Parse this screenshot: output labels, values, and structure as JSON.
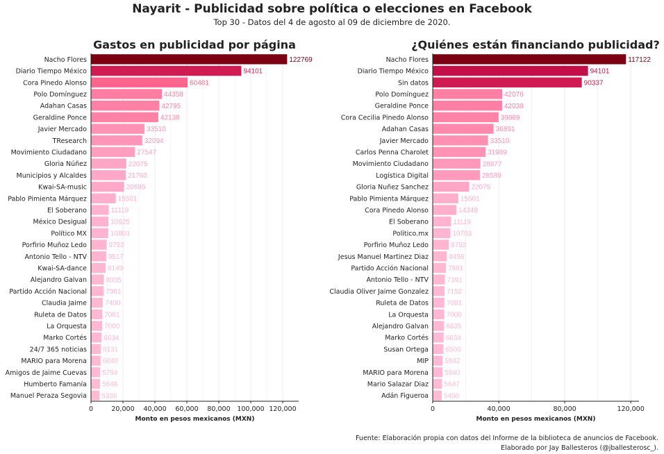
{
  "header": {
    "title": "Nayarit - Publicidad sobre política o elecciones en Facebook",
    "subtitle": "Top 30 - Datos del 4 de agosto al 09 de diciembre de 2020."
  },
  "footer": {
    "source": "Fuente: Elaboración propia con datos del Informe de la biblioteca de anuncios de Facebook.",
    "credit": "Elaborado por Jay Ballesteros (@jballesterosc_)."
  },
  "chart_data": [
    {
      "type": "bar",
      "orientation": "horizontal",
      "title": "Gastos en publicidad por página",
      "xlabel": "Monto en pesos mexicanos (MXN)",
      "ylabel": "",
      "xlim": [
        0,
        130000
      ],
      "xticks": [
        0,
        20000,
        40000,
        60000,
        80000,
        100000,
        120000
      ],
      "xtick_labels": [
        "0",
        "20,000",
        "40,000",
        "60,000",
        "80,000",
        "100,000",
        "120,000"
      ],
      "grid": true,
      "categories": [
        "Nacho Flores",
        "Diario Tiempo México",
        "Cora Pinedo Alonso",
        "Polo Domínguez",
        "Adahan Casas",
        "Geraldine Ponce",
        "Javier Mercado",
        "TResearch",
        "Movimiento Ciudadano",
        "Gloria Núñez",
        "Municipios y Alcaldes",
        "Kwai-SA-music",
        "Pablo Pimienta Márquez",
        "El Soberano",
        "México Desigual",
        "Político MX",
        "Porfirio Muñoz Ledo",
        "Antonio Tello - NTV",
        "Kwai-SA-dance",
        "Alejandro Galvan",
        "Partido Acción Nacional",
        "Claudia Jaime",
        "Ruleta de Datos",
        "La Orquesta",
        "Marko Cortés",
        "24/7 365 noticias",
        "MARIO para Morena",
        "Amigos de Jaime Cuevas",
        "Humberto Famanía",
        "Manuel Peraza Segovia"
      ],
      "values": [
        122769,
        94101,
        60481,
        44358,
        42795,
        42138,
        33510,
        32094,
        27547,
        22075,
        21760,
        20695,
        15501,
        11119,
        10925,
        10803,
        9792,
        9517,
        9149,
        8035,
        7981,
        7400,
        7081,
        7000,
        6634,
        6131,
        6040,
        5794,
        5648,
        5336
      ],
      "value_labels": [
        "122769",
        "94101",
        "60481",
        "44358",
        "42795",
        "42138",
        "33510",
        "32094",
        "27547",
        "22075",
        "21760",
        "20695",
        "15501",
        "11119",
        "10925",
        "10803",
        "9792",
        "9517",
        "9149",
        "8035",
        "7981",
        "7400",
        "7081",
        "7000",
        "6634",
        "6131",
        "6040",
        "5794",
        "5648",
        "5336"
      ]
    },
    {
      "type": "bar",
      "orientation": "horizontal",
      "title": "¿Quiénes están financiando publicidad?",
      "xlabel": "Monto en pesos mexicanos (MXN)",
      "ylabel": "",
      "xlim": [
        0,
        125000
      ],
      "xticks": [
        0,
        40000,
        80000,
        120000
      ],
      "xtick_labels": [
        "0",
        "40,000",
        "80,000",
        "120,000"
      ],
      "grid": true,
      "categories": [
        "Nacho Flores",
        "Diario Tiempo México",
        "Sin datos",
        "Polo Domínguez",
        "Geraldine Ponce",
        "Cora Cecilia Pinedo Alonso",
        "Adahan Casas",
        "Javier Mercado",
        "Carlos Penna Charolet",
        "Movimiento Ciudadano",
        "Logística Digital",
        "Gloria Nuñez Sanchez",
        "Pablo Pimienta Márquez",
        "Cora Pinedo Alonso",
        "El Soberano",
        "Politico.mx",
        "Porfirio Muñoz Ledo",
        "Jesus Manuel Martinez Diaz",
        "Partido Acción Nacional",
        "Antonio Tello - NTV",
        "Claudia Oliver Jaime Gonzalez",
        "Ruleta de Datos",
        "La Orquesta",
        "Alejandro Galvan",
        "Marko Cortés",
        "Susan Ortega",
        "MIP",
        "MARIO para Morena",
        "Mario Salazar Diaz",
        "Adán Figueroa"
      ],
      "values": [
        117122,
        94101,
        90337,
        42076,
        42038,
        39889,
        36891,
        33510,
        31989,
        28877,
        28589,
        22075,
        15501,
        14348,
        11119,
        10703,
        9792,
        8498,
        7981,
        7391,
        7152,
        7081,
        7000,
        6835,
        6634,
        6500,
        5942,
        5940,
        5647,
        5450
      ],
      "value_labels": [
        "117122",
        "94101",
        "90337",
        "42076",
        "42038",
        "39889",
        "36891",
        "33510",
        "31989",
        "28877",
        "28589",
        "22075",
        "15501",
        "14348",
        "11119",
        "10703",
        "9792",
        "8498",
        "7981",
        "7391",
        "7152",
        "7081",
        "7000",
        "6835",
        "6634",
        "6500",
        "5942",
        "5940",
        "5647",
        "5450"
      ]
    }
  ]
}
